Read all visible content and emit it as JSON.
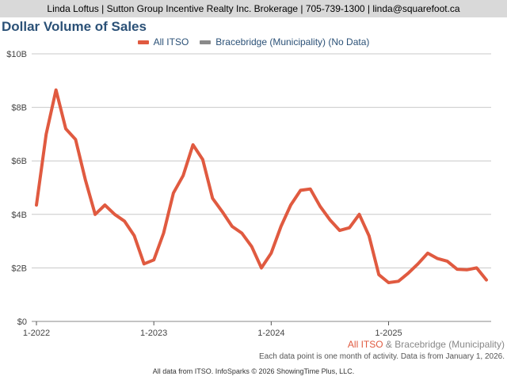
{
  "header": {
    "contact_line": "Linda Loftus | Sutton Group Incentive Realty Inc. Brokerage | 705-739-1300 | linda@squarefoot.ca"
  },
  "colors": {
    "series_all_itso": "#e05a40",
    "series_bracebridge": "#8a8a8a",
    "title": "#2b5177",
    "grid": "#c8c8c8"
  },
  "footer": {
    "legend_a": "All ITSO",
    "legend_amp": " & ",
    "legend_b": "Bracebridge (Municipality)",
    "note": "Each data point is one month of activity. Data is from January 1, 2026.",
    "credit": "All data from ITSO. InfoSparks © 2026 ShowingTime Plus, LLC."
  },
  "chart_data": {
    "type": "line",
    "title": "Dollar Volume of Sales",
    "xlabel": "",
    "ylabel": "",
    "ylim": [
      0,
      10
    ],
    "y_ticks": [
      {
        "value": 0,
        "label": "$0"
      },
      {
        "value": 2,
        "label": "$2B"
      },
      {
        "value": 4,
        "label": "$4B"
      },
      {
        "value": 6,
        "label": "$6B"
      },
      {
        "value": 8,
        "label": "$8B"
      },
      {
        "value": 10,
        "label": "$10B"
      }
    ],
    "x_ticks": [
      {
        "index": 0,
        "label": "1-2022"
      },
      {
        "index": 12,
        "label": "1-2023"
      },
      {
        "index": 24,
        "label": "1-2024"
      },
      {
        "index": 36,
        "label": "1-2025"
      }
    ],
    "x_range": [
      0,
      47
    ],
    "grid": true,
    "legend_position": "top",
    "series": [
      {
        "name": "All ITSO",
        "color": "#e05a40",
        "values": [
          4.35,
          7.0,
          8.65,
          7.2,
          6.8,
          5.3,
          4.0,
          4.35,
          4.0,
          3.75,
          3.2,
          2.15,
          2.3,
          3.3,
          4.8,
          5.45,
          6.6,
          6.05,
          4.6,
          4.1,
          3.55,
          3.3,
          2.8,
          2.0,
          2.55,
          3.55,
          4.35,
          4.9,
          4.95,
          4.3,
          3.8,
          3.4,
          3.5,
          4.0,
          3.2,
          1.75,
          1.45,
          1.5,
          1.8,
          2.15,
          2.55,
          2.35,
          2.25,
          1.95,
          1.93,
          2.0,
          1.55
        ]
      },
      {
        "name": "Bracebridge (Municipality) (No Data)",
        "color": "#8a8a8a",
        "values": []
      }
    ]
  }
}
